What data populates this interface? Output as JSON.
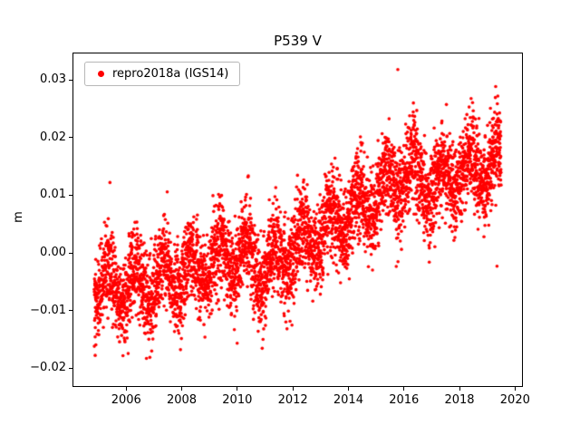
{
  "title": "P539 V",
  "ylabel": "m",
  "legend": {
    "label": "repro2018a (IGS14)",
    "marker_color": "#ff0000"
  },
  "colors": {
    "marker": "#ff0000",
    "background": "#ffffff",
    "axis": "#000000"
  },
  "chart_data": {
    "type": "scatter",
    "title": "P539 V",
    "xlabel": "",
    "ylabel": "m",
    "legend_entries": [
      "repro2018a (IGS14)"
    ],
    "legend_position": "upper left",
    "grid": false,
    "marker_color": "#ff0000",
    "marker_radius_px": 1.8,
    "xlim": [
      2004.1,
      2020.25
    ],
    "ylim": [
      -0.0231,
      0.0346
    ],
    "xticks": [
      2006,
      2008,
      2010,
      2012,
      2014,
      2016,
      2018,
      2020
    ],
    "xtick_labels": [
      "2006",
      "2008",
      "2010",
      "2012",
      "2014",
      "2016",
      "2018",
      "2020"
    ],
    "yticks": [
      -0.02,
      -0.01,
      0.0,
      0.01,
      0.02,
      0.03
    ],
    "ytick_labels": [
      "−0.02",
      "−0.01",
      "0.00",
      "0.01",
      "0.02",
      "0.03"
    ],
    "x_start": 2004.85,
    "x_end": 2019.5,
    "points_per_year": 340,
    "trend_keypoints": [
      [
        2004.85,
        -0.006
      ],
      [
        2005.5,
        -0.0055
      ],
      [
        2006.5,
        -0.006
      ],
      [
        2007.5,
        -0.0045
      ],
      [
        2008.5,
        -0.003
      ],
      [
        2009.5,
        -0.001
      ],
      [
        2010.3,
        0.0
      ],
      [
        2010.9,
        -0.003
      ],
      [
        2011.3,
        -0.002
      ],
      [
        2012.0,
        0.001
      ],
      [
        2013.0,
        0.003
      ],
      [
        2014.0,
        0.007
      ],
      [
        2015.0,
        0.01
      ],
      [
        2015.8,
        0.013
      ],
      [
        2016.5,
        0.013
      ],
      [
        2017.3,
        0.012
      ],
      [
        2018.0,
        0.014
      ],
      [
        2018.8,
        0.015
      ],
      [
        2019.5,
        0.015
      ]
    ],
    "seasonal_amplitude": 0.0032,
    "seasonal_phase": 0.1,
    "noise_std": 0.0038,
    "outliers": [
      [
        2015.78,
        0.0318
      ],
      [
        2019.35,
        -0.0023
      ]
    ],
    "seed": 42
  }
}
